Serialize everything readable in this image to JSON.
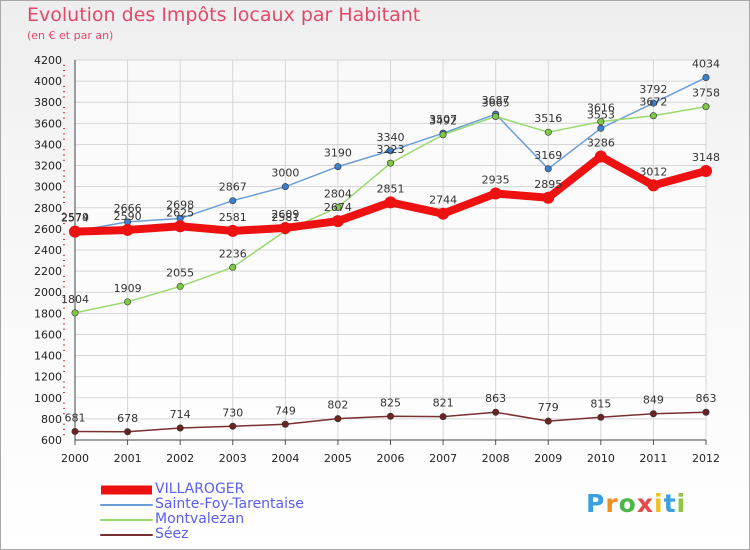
{
  "header": {
    "title": "Evolution des Impôts locaux par Habitant",
    "subtitle": "(en € et par an)"
  },
  "brand": {
    "name": "Proxiti",
    "letters": [
      "P",
      "r",
      "o",
      "x",
      "i",
      "t",
      "i"
    ]
  },
  "chart_data": {
    "type": "line",
    "title": "Evolution des Impôts locaux par Habitant",
    "subtitle": "(en € et par an)",
    "xlabel": "",
    "ylabel": "",
    "ylim": [
      600,
      4200
    ],
    "yticks": [
      600,
      800,
      1000,
      1200,
      1400,
      1600,
      1800,
      2000,
      2200,
      2400,
      2600,
      2800,
      3000,
      3200,
      3400,
      3600,
      3800,
      4000,
      4200
    ],
    "x": [
      "2000",
      "2001",
      "2002",
      "2003",
      "2004",
      "2005",
      "2006",
      "2007",
      "2008",
      "2009",
      "2010",
      "2011",
      "2012"
    ],
    "grid": true,
    "legend_position": "bottom-left",
    "series": [
      {
        "name": "Sainte-Foy-Tarentaise",
        "color": "#6a9ed8",
        "marker": "#3d7fcc",
        "values": [
          2579,
          2666,
          2698,
          2867,
          3000,
          3190,
          3340,
          3507,
          3687,
          3169,
          3553,
          3792,
          4034
        ]
      },
      {
        "name": "Montvalezan",
        "color": "#9ad870",
        "marker": "#7ec843",
        "values": [
          1804,
          1909,
          2055,
          2236,
          2581,
          2804,
          3223,
          3492,
          3665,
          3516,
          3616,
          3672,
          3758
        ]
      },
      {
        "name": "Séez",
        "color": "#7a3030",
        "marker": "#6a2424",
        "values": [
          681,
          678,
          714,
          730,
          749,
          802,
          825,
          821,
          863,
          779,
          815,
          849,
          863
        ]
      },
      {
        "name": "VILLAROGER",
        "color": "#ee1111",
        "marker": "#ee1111",
        "values": [
          2574,
          2590,
          2625,
          2581,
          2609,
          2674,
          2851,
          2744,
          2935,
          2895,
          3286,
          3012,
          3148
        ]
      }
    ],
    "legend": [
      "VILLAROGER",
      "Sainte-Foy-Tarentaise",
      "Montvalezan",
      "Séez"
    ]
  }
}
